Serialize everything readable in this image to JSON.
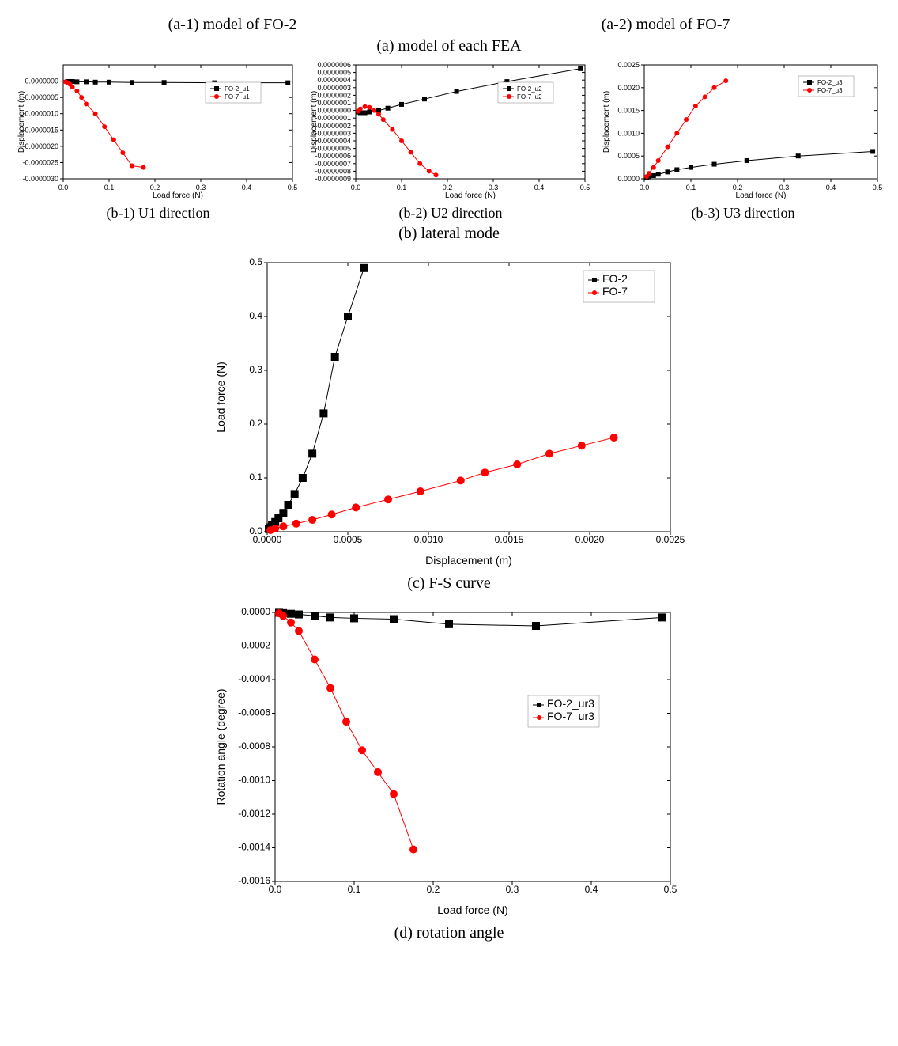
{
  "colors": {
    "series1": "#000000",
    "series2": "#ff0000",
    "axis": "#000000",
    "background": "#ffffff",
    "legend_border": "#808080"
  },
  "top_captions": {
    "left": "(a-1) model of FO-2",
    "right": "(a-2) model of FO-7",
    "center": "(a) model of each FEA"
  },
  "row_b": {
    "b1": {
      "caption": "(b-1) U1 direction",
      "xlabel": "Load force (N)",
      "ylabel": "Displacement (m)",
      "xlim": [
        0,
        0.5
      ],
      "ylim": [
        -3e-06,
        5e-07
      ],
      "xticks": [
        0.0,
        0.1,
        0.2,
        0.3,
        0.4,
        0.5
      ],
      "yticks": [
        -3e-06,
        -2.5e-06,
        -2e-06,
        -1.5e-06,
        -1e-06,
        -5e-07,
        0.0
      ],
      "legend": [
        "FO-2_u1",
        "FO-7_u1"
      ],
      "series1": {
        "x": [
          0.01,
          0.02,
          0.03,
          0.05,
          0.07,
          0.1,
          0.15,
          0.22,
          0.33,
          0.49
        ],
        "y": [
          -1e-08,
          -1e-08,
          -2e-08,
          -2e-08,
          -3e-08,
          -3e-08,
          -4e-08,
          -4e-08,
          -5e-08,
          -5e-08
        ]
      },
      "series2": {
        "x": [
          0.005,
          0.01,
          0.015,
          0.02,
          0.03,
          0.04,
          0.05,
          0.07,
          0.09,
          0.11,
          0.13,
          0.15,
          0.175
        ],
        "y": [
          -2e-08,
          -5e-08,
          -1e-07,
          -1.8e-07,
          -3e-07,
          -5e-07,
          -7e-07,
          -1e-06,
          -1.4e-06,
          -1.8e-06,
          -2.2e-06,
          -2.6e-06,
          -2.65e-06
        ]
      }
    },
    "b2": {
      "caption": "(b-2) U2 direction",
      "xlabel": "Load force (N)",
      "ylabel": "Displacement (m)",
      "xlim": [
        0,
        0.5
      ],
      "ylim": [
        -9e-07,
        6e-07
      ],
      "xticks": [
        0.0,
        0.1,
        0.2,
        0.3,
        0.4,
        0.5
      ],
      "yticks": [
        -9e-07,
        -8e-07,
        -7e-07,
        -6e-07,
        -5e-07,
        -4e-07,
        -3e-07,
        -2e-07,
        -1e-07,
        0,
        1e-07,
        2e-07,
        3e-07,
        4e-07,
        5e-07,
        6e-07
      ],
      "legend": [
        "FO-2_u2",
        "FO-7_u2"
      ],
      "series1": {
        "x": [
          0.005,
          0.01,
          0.02,
          0.03,
          0.05,
          0.07,
          0.1,
          0.15,
          0.22,
          0.33,
          0.49
        ],
        "y": [
          -2e-08,
          -3e-08,
          -3e-08,
          -2e-08,
          0,
          3e-08,
          8e-08,
          1.5e-07,
          2.5e-07,
          3.8e-07,
          5.5e-07
        ]
      },
      "series2": {
        "x": [
          0.005,
          0.01,
          0.02,
          0.03,
          0.04,
          0.05,
          0.06,
          0.08,
          0.1,
          0.12,
          0.14,
          0.16,
          0.175
        ],
        "y": [
          -1e-08,
          2e-08,
          5e-08,
          4e-08,
          0,
          -5e-08,
          -1.2e-07,
          -2.5e-07,
          -4e-07,
          -5.5e-07,
          -7e-07,
          -8e-07,
          -8.5e-07
        ]
      }
    },
    "b3": {
      "caption": "(b-3) U3 direction",
      "xlabel": "Load force (N)",
      "ylabel": "Displacement (m)",
      "xlim": [
        0,
        0.5
      ],
      "ylim": [
        0,
        0.0025
      ],
      "xticks": [
        0.0,
        0.1,
        0.2,
        0.3,
        0.4,
        0.5
      ],
      "yticks": [
        0.0,
        0.0005,
        0.001,
        0.0015,
        0.002,
        0.0025
      ],
      "legend": [
        "FO-2_u3",
        "FO-7_u3"
      ],
      "series1": {
        "x": [
          0.005,
          0.01,
          0.02,
          0.03,
          0.05,
          0.07,
          0.1,
          0.15,
          0.22,
          0.33,
          0.49
        ],
        "y": [
          2e-05,
          4e-05,
          7e-05,
          0.0001,
          0.00015,
          0.0002,
          0.00025,
          0.00032,
          0.0004,
          0.0005,
          0.0006
        ]
      },
      "series2": {
        "x": [
          0.005,
          0.01,
          0.02,
          0.03,
          0.05,
          0.07,
          0.09,
          0.11,
          0.13,
          0.15,
          0.175
        ],
        "y": [
          5e-05,
          0.00012,
          0.00025,
          0.0004,
          0.0007,
          0.001,
          0.0013,
          0.0016,
          0.0018,
          0.002,
          0.00215
        ]
      }
    },
    "caption_row": "(b) lateral mode"
  },
  "chart_c": {
    "caption": "(c) F-S curve",
    "xlabel": "Displacement (m)",
    "ylabel": "Load force (N)",
    "xlim": [
      0,
      0.0025
    ],
    "ylim": [
      0,
      0.5
    ],
    "xticks": [
      0.0,
      0.0005,
      0.001,
      0.0015,
      0.002,
      0.0025
    ],
    "yticks": [
      0.0,
      0.1,
      0.2,
      0.3,
      0.4,
      0.5
    ],
    "legend": [
      "FO-2",
      "FO-7"
    ],
    "series1": {
      "x": [
        1e-05,
        2e-05,
        3e-05,
        5e-05,
        7e-05,
        0.0001,
        0.00013,
        0.00017,
        0.00022,
        0.00028,
        0.00035,
        0.00042,
        0.0005,
        0.0006
      ],
      "y": [
        0.005,
        0.008,
        0.012,
        0.018,
        0.025,
        0.035,
        0.05,
        0.07,
        0.1,
        0.145,
        0.22,
        0.325,
        0.4,
        0.49
      ]
    },
    "series2": {
      "x": [
        2e-05,
        5e-05,
        0.0001,
        0.00018,
        0.00028,
        0.0004,
        0.00055,
        0.00075,
        0.00095,
        0.0012,
        0.00135,
        0.00155,
        0.00175,
        0.00195,
        0.00215
      ],
      "y": [
        0.003,
        0.006,
        0.01,
        0.015,
        0.022,
        0.032,
        0.045,
        0.06,
        0.075,
        0.095,
        0.11,
        0.125,
        0.145,
        0.16,
        0.175
      ]
    }
  },
  "chart_d": {
    "caption": "(d) rotation angle",
    "xlabel": "Load force (N)",
    "ylabel": "Rotation angle (degree)",
    "xlim": [
      0,
      0.5
    ],
    "ylim": [
      -0.0016,
      0.0
    ],
    "xticks": [
      0.0,
      0.1,
      0.2,
      0.3,
      0.4,
      0.5
    ],
    "yticks": [
      -0.0016,
      -0.0014,
      -0.0012,
      -0.001,
      -0.0008,
      -0.0006,
      -0.0004,
      -0.0002,
      0.0
    ],
    "legend": [
      "FO-2_ur3",
      "FO-7_ur3"
    ],
    "series1": {
      "x": [
        0.005,
        0.01,
        0.02,
        0.03,
        0.05,
        0.07,
        0.1,
        0.15,
        0.22,
        0.33,
        0.49
      ],
      "y": [
        -2e-06,
        -4e-06,
        -8e-06,
        -1.2e-05,
        -2e-05,
        -3e-05,
        -3.5e-05,
        -4e-05,
        -7e-05,
        -8e-05,
        -3e-05
      ]
    },
    "series2": {
      "x": [
        0.005,
        0.01,
        0.02,
        0.03,
        0.05,
        0.07,
        0.09,
        0.11,
        0.13,
        0.15,
        0.175
      ],
      "y": [
        -5e-06,
        -2e-05,
        -6e-05,
        -0.00011,
        -0.00028,
        -0.00045,
        -0.00065,
        -0.00082,
        -0.00095,
        -0.00108,
        -0.00141
      ]
    }
  },
  "styling": {
    "marker_size_small": 3,
    "marker_size_big": 5,
    "line_width": 1,
    "font_family": "Arial"
  }
}
